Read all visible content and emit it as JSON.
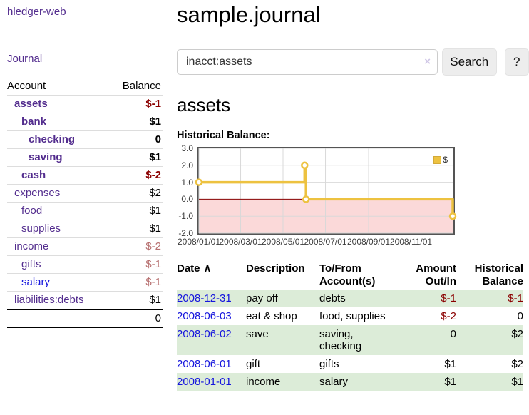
{
  "app": {
    "brand": "hledger-web"
  },
  "colors": {
    "link_purple": "#532d8e",
    "link_blue": "#1515dd",
    "negative_strong": "#8b0000",
    "negative_soft": "#b66e6e",
    "row_stripe_green": "#dcecd8",
    "chart_line_gold": "#edc240"
  },
  "sidebar": {
    "nav_journal": "Journal",
    "columns": {
      "account": "Account",
      "balance": "Balance"
    },
    "accounts": [
      {
        "name": "assets",
        "depth": 0,
        "bold": true,
        "balance": "$-1",
        "neg": "strong"
      },
      {
        "name": "bank",
        "depth": 1,
        "bold": true,
        "balance": "$1",
        "neg": "none"
      },
      {
        "name": "checking",
        "depth": 2,
        "bold": true,
        "balance": "0",
        "neg": "none"
      },
      {
        "name": "saving",
        "depth": 2,
        "bold": true,
        "balance": "$1",
        "neg": "none"
      },
      {
        "name": "cash",
        "depth": 1,
        "bold": true,
        "balance": "$-2",
        "neg": "strong"
      },
      {
        "name": "expenses",
        "depth": 0,
        "bold": false,
        "balance": "$2",
        "neg": "none"
      },
      {
        "name": "food",
        "depth": 1,
        "bold": false,
        "balance": "$1",
        "neg": "none"
      },
      {
        "name": "supplies",
        "depth": 1,
        "bold": false,
        "balance": "$1",
        "neg": "none"
      },
      {
        "name": "income",
        "depth": 0,
        "bold": false,
        "balance": "$-2",
        "neg": "soft"
      },
      {
        "name": "gifts",
        "depth": 1,
        "bold": false,
        "balance": "$-1",
        "neg": "soft"
      },
      {
        "name": "salary",
        "depth": 1,
        "bold": false,
        "balance": "$-1",
        "neg": "soft",
        "link": "blue"
      },
      {
        "name": "liabilities:debts",
        "depth": 0,
        "bold": false,
        "balance": "$1",
        "neg": "none"
      }
    ],
    "total": "0"
  },
  "main": {
    "title": "sample.journal",
    "search": {
      "value": "inacct:assets",
      "clear_icon": "×",
      "search_button": "Search",
      "help_button": "?"
    },
    "account_heading": "assets",
    "chart_title": "Historical Balance:"
  },
  "chart_data": {
    "type": "line",
    "step": true,
    "title": "Historical Balance:",
    "series": [
      {
        "name": "$",
        "color": "#edc240",
        "points": [
          [
            "2008-01-01",
            1
          ],
          [
            "2008-06-01",
            2
          ],
          [
            "2008-06-03",
            0
          ],
          [
            "2008-12-31",
            -1
          ]
        ]
      }
    ],
    "x_range": [
      "2008-01-01",
      "2009-01-01"
    ],
    "ylim": [
      -2,
      3
    ],
    "yticks": [
      {
        "v": 3,
        "label": "3.0"
      },
      {
        "v": 2,
        "label": "2.0"
      },
      {
        "v": 1,
        "label": "1.0"
      },
      {
        "v": 0,
        "label": "0.0"
      },
      {
        "v": -1,
        "label": "-1.0"
      },
      {
        "v": -2,
        "label": "-2.0"
      }
    ],
    "xticks": [
      {
        "date": "2008-01-01",
        "label": "2008/01/01"
      },
      {
        "date": "2008-03-01",
        "label": "2008/03/01"
      },
      {
        "date": "2008-05-01",
        "label": "2008/05/01"
      },
      {
        "date": "2008-07-01",
        "label": "2008/07/01"
      },
      {
        "date": "2008-09-01",
        "label": "2008/09/01"
      },
      {
        "date": "2008-11-01",
        "label": "2008/11/01"
      }
    ],
    "legend": {
      "label": "$",
      "position": "top-right"
    },
    "colors": {
      "line": "#edc240",
      "marker_fill": "#ffffff",
      "negative_region": "#fbd9d9",
      "zero_line": "#8b0000",
      "grid": "#d9d9d9",
      "border": "#545454"
    }
  },
  "register": {
    "headers": {
      "date": "Date",
      "sort_icon": "∧",
      "description": "Description",
      "accounts_l1": "To/From",
      "accounts_l2": "Account(s)",
      "amount_l1": "Amount",
      "amount_l2": "Out/In",
      "balance_l1": "Historical",
      "balance_l2": "Balance"
    },
    "rows": [
      {
        "date": "2008-12-31",
        "description": "pay off",
        "accounts": "debts",
        "amount": "$-1",
        "amount_neg": true,
        "balance": "$-1",
        "balance_neg": true
      },
      {
        "date": "2008-06-03",
        "description": "eat & shop",
        "accounts": "food, supplies",
        "amount": "$-2",
        "amount_neg": true,
        "balance": "0",
        "balance_neg": false
      },
      {
        "date": "2008-06-02",
        "description": "save",
        "accounts": "saving, checking",
        "amount": "0",
        "amount_neg": false,
        "balance": "$2",
        "balance_neg": false
      },
      {
        "date": "2008-06-01",
        "description": "gift",
        "accounts": "gifts",
        "amount": "$1",
        "amount_neg": false,
        "balance": "$2",
        "balance_neg": false
      },
      {
        "date": "2008-01-01",
        "description": "income",
        "accounts": "salary",
        "amount": "$1",
        "amount_neg": false,
        "balance": "$1",
        "balance_neg": false
      }
    ]
  }
}
